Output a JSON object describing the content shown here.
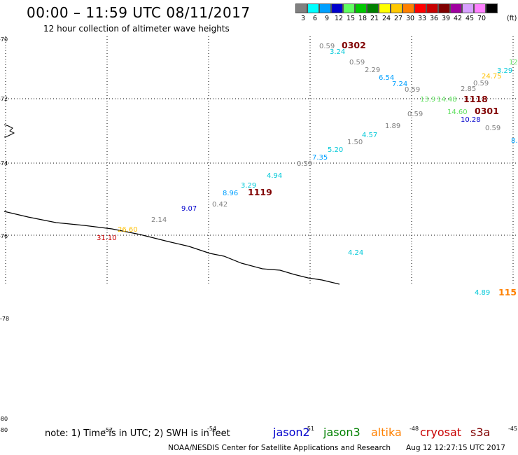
{
  "header": {
    "title": "00:00 – 11:59 UTC 08/11/2017",
    "subtitle": "12 hour collection of altimeter wave heights"
  },
  "color_scale": {
    "unit": "(ft)",
    "bins": [
      {
        "label": "3",
        "color": "#808080"
      },
      {
        "label": "6",
        "color": "#00ffff"
      },
      {
        "label": "9",
        "color": "#00a0ff"
      },
      {
        "label": "12",
        "color": "#0000cc"
      },
      {
        "label": "15",
        "color": "#60ff60"
      },
      {
        "label": "18",
        "color": "#00c800"
      },
      {
        "label": "21",
        "color": "#008000"
      },
      {
        "label": "24",
        "color": "#ffff00"
      },
      {
        "label": "27",
        "color": "#ffc800"
      },
      {
        "label": "30",
        "color": "#ff8000"
      },
      {
        "label": "33",
        "color": "#ff0000"
      },
      {
        "label": "36",
        "color": "#c80000"
      },
      {
        "label": "39",
        "color": "#800000"
      },
      {
        "label": "42",
        "color": "#a000a0"
      },
      {
        "label": "45",
        "color": "#d8a0ff"
      },
      {
        "label": "70",
        "color": "#ff80ff"
      },
      {
        "label": "",
        "color": "#000000"
      }
    ]
  },
  "lat_labels": [
    "-70",
    "-72",
    "-74",
    "-76",
    "-78",
    "-80",
    "-80"
  ],
  "lon_labels": [
    "-57",
    "-54",
    "-51",
    "-48",
    "-45"
  ],
  "observations": [
    {
      "text": "0.59",
      "color": "#808080"
    },
    {
      "text": "3.24",
      "color": "#00c8d8"
    },
    {
      "text": "0302",
      "color": "#800000"
    },
    {
      "text": "0.59",
      "color": "#808080"
    },
    {
      "text": "2.29",
      "color": "#808080"
    },
    {
      "text": "6.54",
      "color": "#00a0ff"
    },
    {
      "text": "7.24",
      "color": "#00a0ff"
    },
    {
      "text": "0.59",
      "color": "#808080"
    },
    {
      "text": "12",
      "color": "#60e060"
    },
    {
      "text": "3.29",
      "color": "#00c8d8"
    },
    {
      "text": "24.75",
      "color": "#ffc000"
    },
    {
      "text": "0.59",
      "color": "#808080"
    },
    {
      "text": "2.85",
      "color": "#808080"
    },
    {
      "text": "1118",
      "color": "#800000"
    },
    {
      "text": "13.9",
      "color": "#60e060"
    },
    {
      "text": "14.48",
      "color": "#60e060"
    },
    {
      "text": "0.59",
      "color": "#808080"
    },
    {
      "text": "14.60",
      "color": "#60e060"
    },
    {
      "text": "0301",
      "color": "#800000"
    },
    {
      "text": "10.28",
      "color": "#0000cc"
    },
    {
      "text": "0.59",
      "color": "#808080"
    },
    {
      "text": "8.",
      "color": "#00a0ff"
    },
    {
      "text": "1.89",
      "color": "#808080"
    },
    {
      "text": "4.57",
      "color": "#00c8d8"
    },
    {
      "text": "1.50",
      "color": "#808080"
    },
    {
      "text": "5.20",
      "color": "#00c8d8"
    },
    {
      "text": "7.35",
      "color": "#00a0ff"
    },
    {
      "text": "0.59",
      "color": "#808080"
    },
    {
      "text": "4.94",
      "color": "#00c8d8"
    },
    {
      "text": "3.29",
      "color": "#00c8d8"
    },
    {
      "text": "8.96",
      "color": "#00a0ff"
    },
    {
      "text": "1119",
      "color": "#800000"
    },
    {
      "text": "0.42",
      "color": "#808080"
    },
    {
      "text": "9.07",
      "color": "#0000cc"
    },
    {
      "text": "2.14",
      "color": "#808080"
    },
    {
      "text": "26.60",
      "color": "#ffc000"
    },
    {
      "text": "31.10",
      "color": "#c80000"
    },
    {
      "text": "4.24",
      "color": "#00c8d8"
    },
    {
      "text": "4.89",
      "color": "#00c8d8"
    },
    {
      "text": "115",
      "color": "#ff8000"
    }
  ],
  "footer": {
    "note": "note:  1) Time is in UTC;  2) SWH is in feet",
    "satellites": [
      {
        "name": "jason2",
        "color": "#0000cc"
      },
      {
        "name": "jason3",
        "color": "#008000"
      },
      {
        "name": "altika",
        "color": "#ff8000"
      },
      {
        "name": "cryosat",
        "color": "#c80000"
      },
      {
        "name": "s3a",
        "color": "#800000"
      }
    ],
    "credit": "NOAA/NESDIS Center for Satellite Applications and Research",
    "generated": "Aug 12 12:27:15 UTC 2017"
  }
}
